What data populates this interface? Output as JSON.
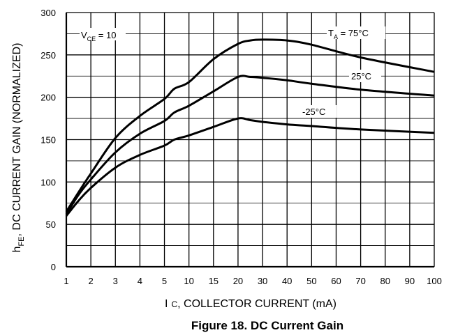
{
  "chart_data": {
    "type": "line",
    "title": "Figure 18. DC Current Gain",
    "xlabel": {
      "prefix": "I",
      "sub": "C",
      "rest": ", COLLECTOR CURRENT (mA)"
    },
    "ylabel": {
      "prefix": "h",
      "sub": "FE",
      "rest": ", DC CURRENT GAIN (NORMALIZED)"
    },
    "x_scale": "log",
    "x_ticks": [
      1,
      2,
      3,
      4,
      5,
      10,
      15,
      20,
      30,
      40,
      50,
      60,
      70,
      80,
      90,
      100
    ],
    "x_tick_labels": [
      "1",
      "2",
      "3",
      "4",
      "5",
      "10",
      "15",
      "20",
      "30",
      "40",
      "50",
      "60",
      "70",
      "80",
      "90",
      "100"
    ],
    "ylim": [
      0,
      300
    ],
    "y_ticks": [
      0,
      50,
      100,
      150,
      200,
      250,
      300
    ],
    "y_minor_step": 25,
    "grid": true,
    "condition": {
      "prefix": "V",
      "sub": "CE",
      "rest": " = 10"
    },
    "series": [
      {
        "name": {
          "prefix": "T",
          "sub": "A",
          "rest": " = 75°C"
        },
        "x": [
          1,
          1.5,
          2,
          3,
          4,
          5,
          7,
          10,
          15,
          20,
          25,
          30,
          40,
          50,
          70,
          100
        ],
        "y": [
          65,
          88,
          110,
          152,
          178,
          198,
          210,
          218,
          245,
          263,
          267,
          268,
          267,
          262,
          247,
          230
        ]
      },
      {
        "name": {
          "prefix": "",
          "sub": "",
          "rest": "25°C"
        },
        "x": [
          1,
          1.5,
          2,
          3,
          4,
          5,
          7,
          10,
          15,
          20,
          25,
          30,
          40,
          50,
          70,
          100
        ],
        "y": [
          62,
          85,
          103,
          135,
          157,
          172,
          182,
          190,
          207,
          224,
          224,
          223,
          220,
          216,
          209,
          202
        ]
      },
      {
        "name": {
          "prefix": "",
          "sub": "",
          "rest": "-25°C"
        },
        "x": [
          1,
          1.5,
          2,
          3,
          4,
          5,
          7,
          10,
          15,
          20,
          25,
          30,
          40,
          50,
          70,
          100
        ],
        "y": [
          60,
          78,
          93,
          117,
          132,
          143,
          150,
          155,
          165,
          175,
          173,
          171,
          168,
          166,
          162,
          158
        ]
      }
    ]
  }
}
